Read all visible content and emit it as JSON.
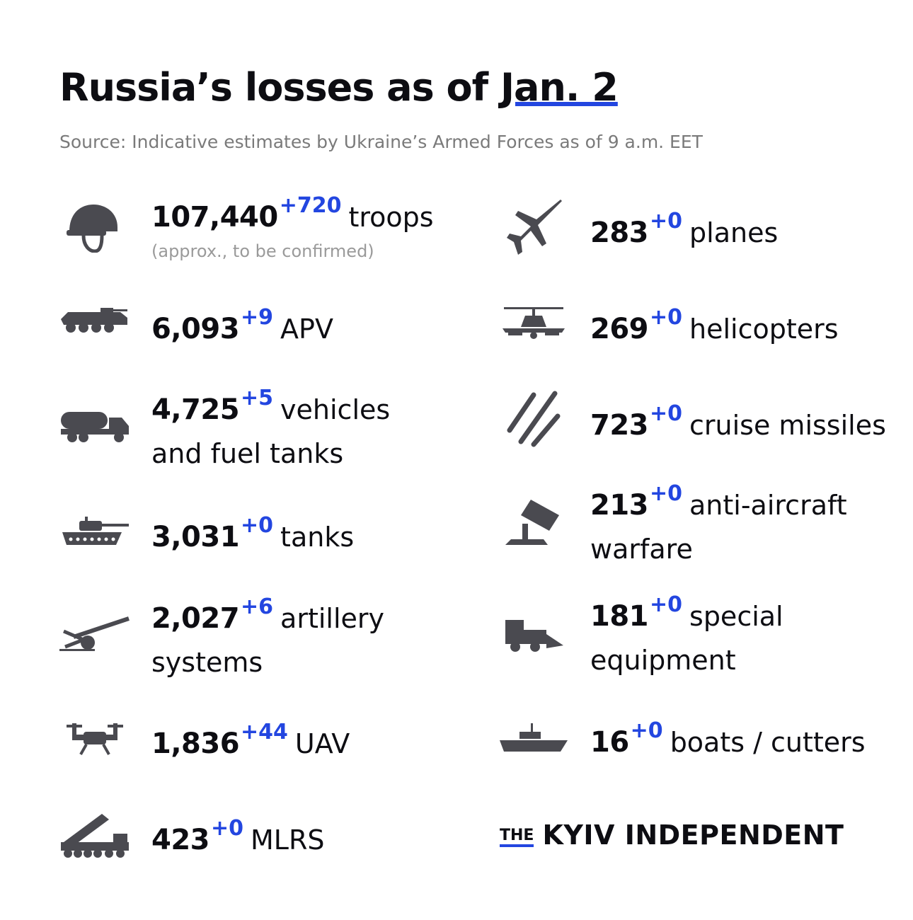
{
  "header": {
    "title_prefix": "Russia’s losses as of ",
    "title_date": "Jan. 2",
    "source": "Source: Indicative estimates by Ukraine’s Armed Forces as of 9 a.m. EET"
  },
  "colors": {
    "accent": "#2346e0",
    "icon": "#4a4a50",
    "text": "#0d0d12",
    "muted": "#9a9a9a"
  },
  "left": [
    {
      "icon": "helmet-icon",
      "value": "107,440",
      "delta": "+720",
      "label": "troops",
      "note": "(approx., to be confirmed)"
    },
    {
      "icon": "apv-icon",
      "value": "6,093",
      "delta": "+9",
      "label": "APV"
    },
    {
      "icon": "fuel-truck-icon",
      "value": "4,725",
      "delta": "+5",
      "label": "vehicles",
      "label2": "and fuel tanks"
    },
    {
      "icon": "tank-icon",
      "value": "3,031",
      "delta": "+0",
      "label": "tanks"
    },
    {
      "icon": "artillery-icon",
      "value": "2,027",
      "delta": "+6",
      "label": "artillery",
      "label2": "systems"
    },
    {
      "icon": "drone-icon",
      "value": "1,836",
      "delta": "+44",
      "label": "UAV"
    },
    {
      "icon": "mlrs-icon",
      "value": "423",
      "delta": "+0",
      "label": "MLRS"
    }
  ],
  "right": [
    {
      "icon": "plane-icon",
      "value": "283",
      "delta": "+0",
      "label": "planes"
    },
    {
      "icon": "helicopter-icon",
      "value": "269",
      "delta": "+0",
      "label": "helicopters"
    },
    {
      "icon": "missiles-icon",
      "value": "723",
      "delta": "+0",
      "label": "cruise missiles"
    },
    {
      "icon": "anti-aircraft-icon",
      "value": "213",
      "delta": "+0",
      "label": "anti-aircraft",
      "label2": "warfare"
    },
    {
      "icon": "loader-icon",
      "value": "181",
      "delta": "+0",
      "label": "special",
      "label2": "equipment"
    },
    {
      "icon": "warship-icon",
      "value": "16",
      "delta": "+0",
      "label": "boats / cutters"
    }
  ],
  "logo": {
    "the": "THE",
    "name": "KYIV INDEPENDENT"
  }
}
